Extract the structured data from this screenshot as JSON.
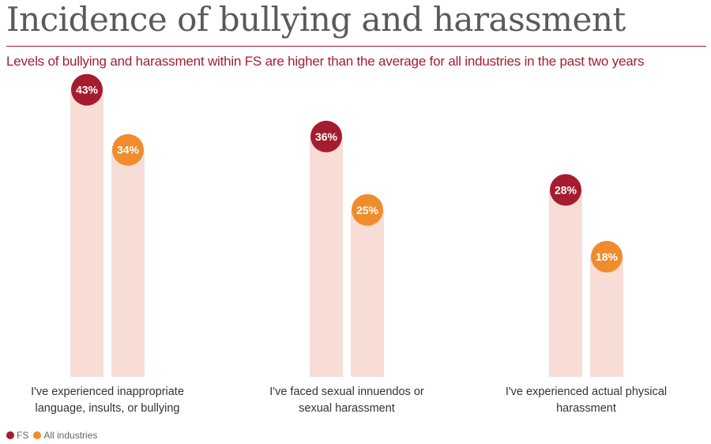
{
  "header": {
    "title": "Incidence of bullying and harassment",
    "subtitle": "Levels of bullying and harassment within FS are higher than the average for all industries in the past two years"
  },
  "colors": {
    "fs": "#a51c30",
    "all_industries": "#f08c2c",
    "bar": "#f7ddd5",
    "rule": "#a51c30",
    "label_text": "#333333"
  },
  "chart_data": {
    "type": "bar",
    "title": "Incidence of bullying and harassment",
    "subtitle": "Levels of bullying and harassment within FS are higher than the average for all industries in the past two years",
    "categories": [
      [
        "I've experienced inappropriate",
        "language, insults, or bullying"
      ],
      [
        "I've faced sexual innuendos or",
        "sexual harassment"
      ],
      [
        "I've experienced actual physical",
        "harassment"
      ]
    ],
    "series": [
      {
        "name": "FS",
        "values": [
          43,
          36,
          28
        ],
        "labels": [
          "43%",
          "36%",
          "28%"
        ]
      },
      {
        "name": "All industries",
        "values": [
          34,
          25,
          18
        ],
        "labels": [
          "34%",
          "25%",
          "18%"
        ]
      }
    ],
    "ylim": [
      0,
      100
    ],
    "grid": false,
    "legend": "bottom-left"
  }
}
